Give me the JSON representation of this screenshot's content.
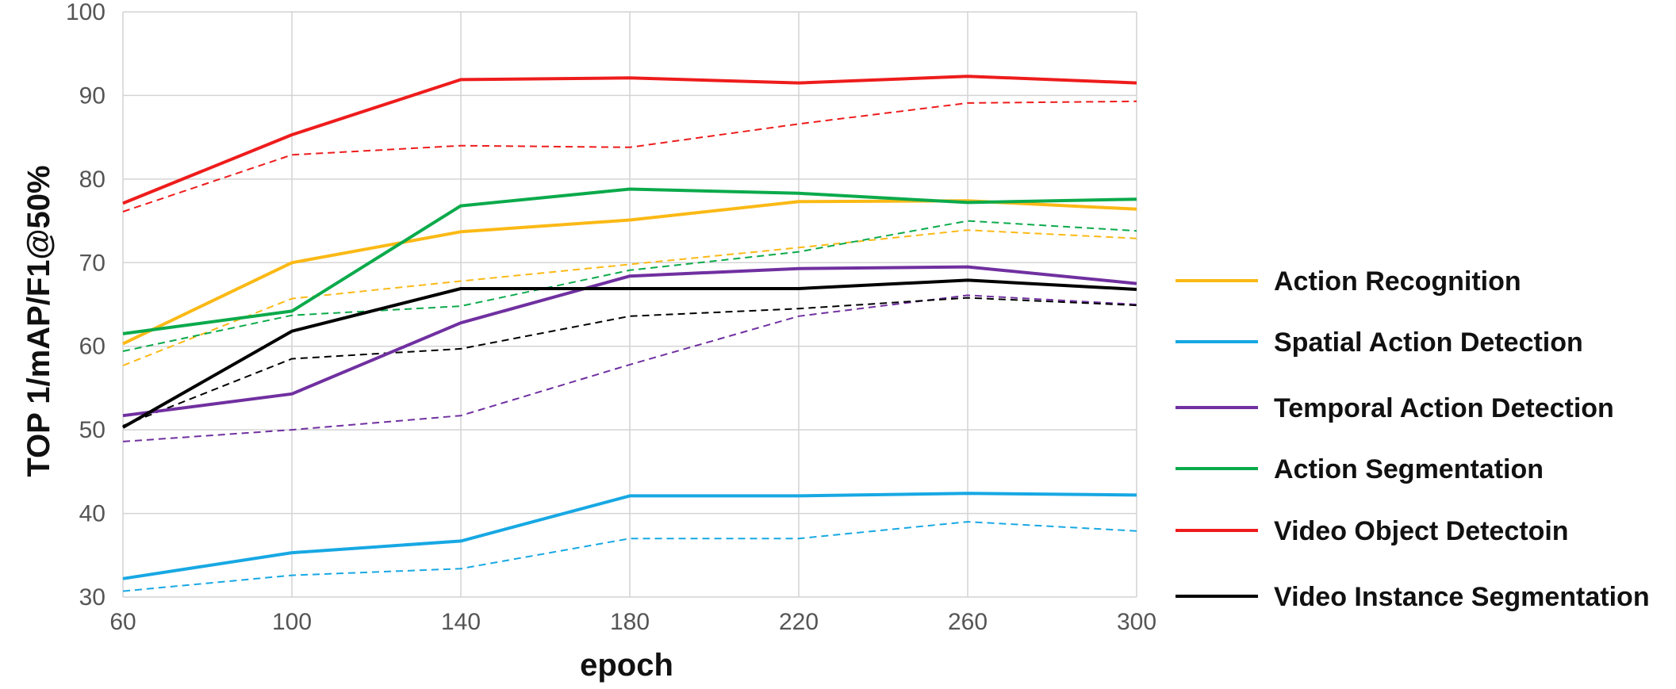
{
  "chart_data": {
    "type": "line",
    "title": "",
    "xlabel": "epoch",
    "ylabel": "TOP 1/mAP/F1@50%",
    "xlim": [
      60,
      300
    ],
    "ylim": [
      30,
      100
    ],
    "x": [
      60,
      100,
      140,
      180,
      220,
      260,
      300
    ],
    "x_ticks": [
      "60",
      "100",
      "140",
      "180",
      "220",
      "260",
      "300"
    ],
    "y_ticks": [
      "30",
      "40",
      "50",
      "60",
      "70",
      "80",
      "90",
      "100"
    ],
    "grid": true,
    "legend_position": "right",
    "series": [
      {
        "name": "Action Recognition",
        "color": "#FBB915",
        "values": [
          60.3,
          70.0,
          73.7,
          75.1,
          77.3,
          77.4,
          76.4
        ],
        "dashed_values": [
          57.7,
          65.7,
          67.8,
          69.8,
          71.8,
          73.9,
          72.9
        ]
      },
      {
        "name": "Spatial Action Detection",
        "color": "#17A8E3",
        "values": [
          32.2,
          35.3,
          36.7,
          42.1,
          42.1,
          42.4,
          42.2
        ],
        "dashed_values": [
          30.7,
          32.6,
          33.4,
          37.0,
          37.0,
          39.0,
          37.9
        ]
      },
      {
        "name": "Temporal Action Detection",
        "color": "#7030A0",
        "values": [
          51.7,
          54.3,
          62.8,
          68.4,
          69.3,
          69.5,
          67.5
        ],
        "dashed_values": [
          48.6,
          50.0,
          51.7,
          57.8,
          63.6,
          66.1,
          65.0
        ]
      },
      {
        "name": "Action Segmentation",
        "color": "#0BAA4B",
        "values": [
          61.5,
          64.2,
          76.8,
          78.8,
          78.3,
          77.2,
          77.6
        ],
        "dashed_values": [
          59.4,
          63.7,
          64.8,
          69.1,
          71.3,
          75.0,
          73.8
        ]
      },
      {
        "name": "Video Object Detectoin",
        "color": "#EE1C1C",
        "values": [
          77.1,
          85.3,
          91.9,
          92.1,
          91.5,
          92.3,
          91.5
        ],
        "dashed_values": [
          76.1,
          82.9,
          84.0,
          83.8,
          86.6,
          89.1,
          89.3
        ]
      },
      {
        "name": "Video Instance Segmentation",
        "color": "#000000",
        "values": [
          50.3,
          61.8,
          66.9,
          66.9,
          66.9,
          67.9,
          66.8
        ],
        "dashed_values": [
          50.5,
          58.5,
          59.7,
          63.6,
          64.5,
          65.8,
          64.9
        ]
      }
    ]
  }
}
